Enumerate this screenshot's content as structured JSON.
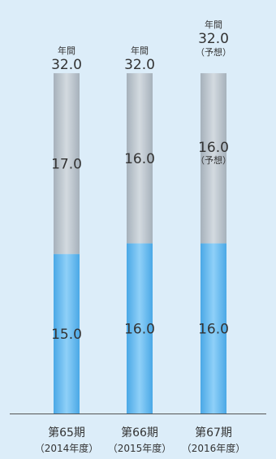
{
  "chart_data": {
    "type": "bar",
    "stacked": true,
    "categories": [
      "第65期",
      "第66期",
      "第67期"
    ],
    "category_sublabels": [
      "（2014年度）",
      "（2015年度）",
      "（2016年度）"
    ],
    "series": [
      {
        "values": [
          15.0,
          16.0,
          16.0
        ],
        "labels": [
          "15.0",
          "16.0",
          "16.0"
        ],
        "notes": [
          "",
          "",
          ""
        ],
        "color": "#5bb5ec"
      },
      {
        "values": [
          17.0,
          16.0,
          16.0
        ],
        "labels": [
          "17.0",
          "16.0",
          "16.0"
        ],
        "notes": [
          "",
          "",
          "（予想）"
        ],
        "color": "#b7c1ca"
      }
    ],
    "totals": [
      {
        "caption": "年間",
        "value": 32.0,
        "label": "32.0",
        "note": ""
      },
      {
        "caption": "年間",
        "value": 32.0,
        "label": "32.0",
        "note": ""
      },
      {
        "caption": "年間",
        "value": 32.0,
        "label": "32.0",
        "note": "（予想）"
      }
    ],
    "ylim": [
      0,
      34
    ],
    "grid": false,
    "axis_color": "#555555"
  }
}
